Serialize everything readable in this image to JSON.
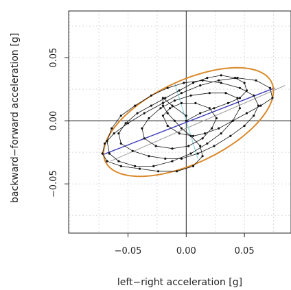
{
  "chart_data": {
    "type": "scatter",
    "title": "",
    "xlabel": "left−right acceleration [g]",
    "ylabel": "backward−forward acceleration [g]",
    "xlim": [
      -0.101,
      0.09
    ],
    "ylim": [
      -0.089,
      0.087
    ],
    "x_ticks": [
      -0.05,
      0.0,
      0.05
    ],
    "x_tick_labels": [
      "−0.05",
      "0.00",
      "0.05"
    ],
    "y_ticks": [
      -0.05,
      0.0,
      0.05
    ],
    "y_tick_labels": [
      "−0.05",
      "0.00",
      "0.05"
    ],
    "grid": true,
    "colors": {
      "points": "#111111",
      "ellipse": "#d9892b",
      "major_axis": "#3a3ab8",
      "minor_axis": "#8fd8e0",
      "secondary_line": "#9a9a9a",
      "zero_lines": "#222222",
      "grid": "#d9d9d9"
    },
    "ellipse": {
      "center": [
        0.002,
        -0.001
      ],
      "semi_major": 0.078,
      "semi_minor": 0.033,
      "angle_deg": 23
    },
    "major_axis_line": {
      "x": [
        -0.072,
        0.076
      ],
      "y": [
        -0.027,
        0.026
      ]
    },
    "minor_axis_line": {
      "x": [
        -0.01,
        0.01
      ],
      "y": [
        0.03,
        -0.03
      ]
    },
    "secondary_line": {
      "x": [
        -0.065,
        0.085
      ],
      "y": [
        -0.032,
        0.028
      ]
    },
    "series": [
      {
        "x": [
          0.0,
          0.012,
          0.024,
          0.036,
          0.046,
          0.052,
          0.05,
          0.042,
          0.03,
          0.018,
          0.006,
          -0.006,
          -0.018,
          -0.03,
          -0.042,
          -0.052,
          -0.058,
          -0.056,
          -0.046,
          -0.032,
          -0.018,
          -0.004,
          0.01,
          0.024,
          0.038,
          0.05,
          0.058,
          0.062,
          0.058,
          0.046,
          0.03,
          0.014,
          -0.002,
          -0.016,
          -0.03,
          -0.044,
          -0.056,
          -0.064,
          -0.068,
          -0.066,
          -0.058,
          -0.044,
          -0.028,
          -0.012,
          0.004,
          0.018,
          0.03,
          0.04,
          0.046,
          0.044,
          0.034,
          0.02,
          0.004,
          -0.01,
          -0.022,
          -0.032,
          -0.038,
          -0.036,
          -0.026,
          -0.012,
          0.002,
          0.014,
          0.022,
          0.026,
          0.02,
          0.008,
          -0.004,
          -0.014,
          -0.02,
          -0.016,
          -0.006,
          0.006,
          0.016,
          0.028,
          0.04,
          0.052,
          0.064,
          0.074,
          0.072,
          0.06,
          0.044,
          0.028,
          0.012,
          -0.004,
          -0.02,
          -0.036,
          -0.05,
          -0.062,
          -0.07,
          -0.072,
          -0.068,
          -0.056,
          -0.04,
          -0.024,
          -0.008,
          0.006,
          0.014,
          0.012,
          0.004,
          -0.004,
          -0.01,
          -0.016,
          -0.02,
          -0.02,
          -0.012,
          0.0
        ],
        "y": [
          0.0,
          0.006,
          0.01,
          0.014,
          0.018,
          0.024,
          0.03,
          0.034,
          0.036,
          0.034,
          0.03,
          0.024,
          0.018,
          0.012,
          0.006,
          -0.002,
          -0.01,
          -0.018,
          -0.024,
          -0.028,
          -0.03,
          -0.03,
          -0.026,
          -0.02,
          -0.012,
          -0.004,
          0.004,
          0.012,
          0.02,
          0.026,
          0.03,
          0.032,
          0.03,
          0.026,
          0.02,
          0.012,
          0.004,
          -0.006,
          -0.016,
          -0.026,
          -0.032,
          -0.036,
          -0.036,
          -0.032,
          -0.026,
          -0.018,
          -0.01,
          0.0,
          0.01,
          0.018,
          0.022,
          0.022,
          0.02,
          0.016,
          0.01,
          0.002,
          -0.006,
          -0.014,
          -0.02,
          -0.022,
          -0.02,
          -0.014,
          -0.006,
          0.002,
          0.01,
          0.014,
          0.014,
          0.01,
          0.004,
          -0.004,
          -0.01,
          -0.012,
          -0.01,
          -0.006,
          0.0,
          0.006,
          0.012,
          0.018,
          0.026,
          0.032,
          0.034,
          0.032,
          0.028,
          0.022,
          0.014,
          0.006,
          -0.002,
          -0.01,
          -0.018,
          -0.026,
          -0.032,
          -0.036,
          -0.038,
          -0.04,
          -0.04,
          -0.036,
          -0.028,
          -0.02,
          -0.012,
          -0.006,
          0.0,
          0.006,
          0.012,
          0.018,
          0.012,
          0.004
        ]
      }
    ]
  }
}
